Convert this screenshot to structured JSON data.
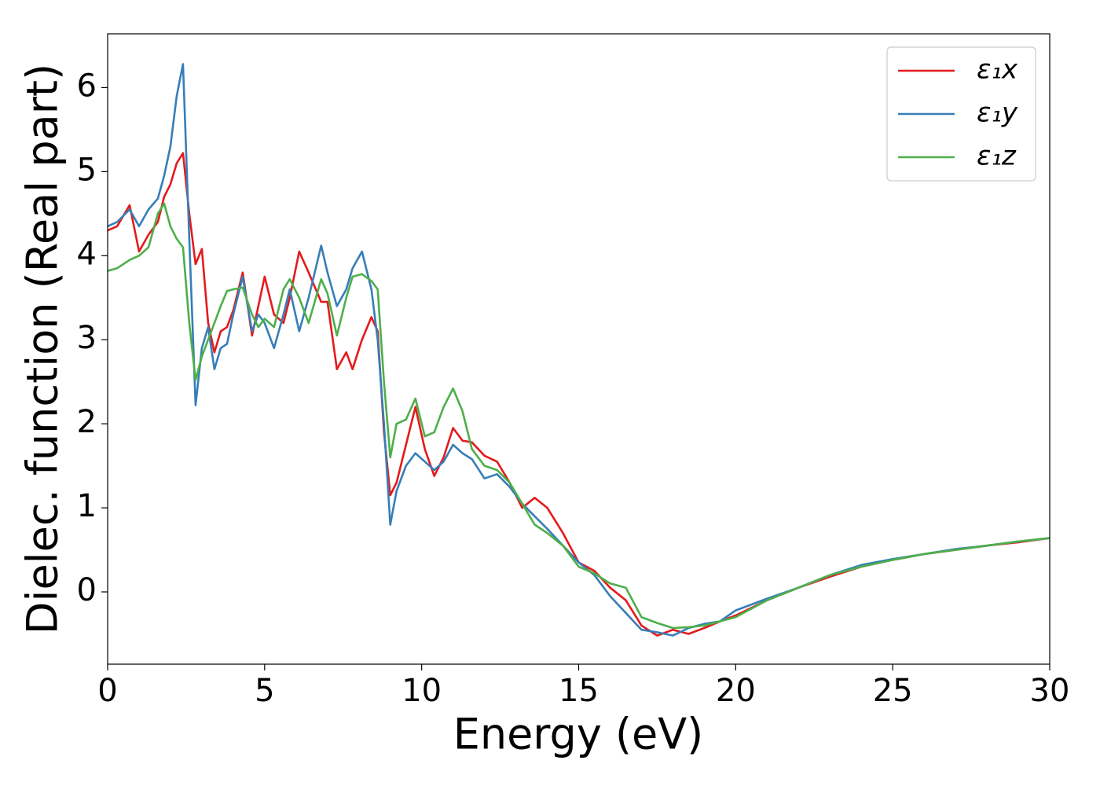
{
  "chart_data": {
    "type": "line",
    "xlabel": "Energy (eV)",
    "ylabel": "Dielec. function (Real part)",
    "x": [
      0,
      0.3,
      0.7,
      1.0,
      1.3,
      1.6,
      1.8,
      2.0,
      2.2,
      2.4,
      2.6,
      2.8,
      3.0,
      3.2,
      3.4,
      3.6,
      3.8,
      4.0,
      4.3,
      4.6,
      4.8,
      5.0,
      5.3,
      5.6,
      5.8,
      6.1,
      6.4,
      6.8,
      7.0,
      7.3,
      7.6,
      7.8,
      8.1,
      8.4,
      8.6,
      8.8,
      9.0,
      9.2,
      9.5,
      9.8,
      10.1,
      10.4,
      10.7,
      11.0,
      11.3,
      11.6,
      12.0,
      12.4,
      12.8,
      13.2,
      13.6,
      14.0,
      14.5,
      15.0,
      15.5,
      16.0,
      16.5,
      17.0,
      17.5,
      18.0,
      18.5,
      19.0,
      19.5,
      20.0,
      21,
      22,
      23,
      24,
      25,
      26,
      27,
      28,
      29,
      30
    ],
    "series": [
      {
        "name": "ε₁x",
        "color": "#e41a1c",
        "values": [
          4.3,
          4.35,
          4.6,
          4.05,
          4.25,
          4.4,
          4.7,
          4.85,
          5.1,
          5.22,
          4.5,
          3.9,
          4.08,
          3.2,
          2.85,
          3.1,
          3.15,
          3.35,
          3.8,
          3.05,
          3.4,
          3.75,
          3.3,
          3.2,
          3.5,
          4.05,
          3.8,
          3.45,
          3.45,
          2.65,
          2.85,
          2.65,
          3.0,
          3.27,
          3.1,
          1.9,
          1.15,
          1.3,
          1.75,
          2.2,
          1.7,
          1.38,
          1.6,
          1.95,
          1.8,
          1.78,
          1.62,
          1.55,
          1.3,
          1.0,
          1.12,
          1.0,
          0.7,
          0.35,
          0.25,
          0.05,
          -0.1,
          -0.4,
          -0.52,
          -0.45,
          -0.5,
          -0.43,
          -0.35,
          -0.28,
          -0.1,
          0.05,
          0.18,
          0.3,
          0.38,
          0.45,
          0.5,
          0.55,
          0.59,
          0.64
        ]
      },
      {
        "name": "ε₁y",
        "color": "#377eb8",
        "values": [
          4.35,
          4.4,
          4.55,
          4.35,
          4.55,
          4.68,
          4.95,
          5.3,
          5.9,
          6.28,
          4.2,
          2.22,
          2.9,
          3.15,
          2.65,
          2.9,
          2.95,
          3.3,
          3.75,
          3.1,
          3.3,
          3.2,
          2.9,
          3.3,
          3.6,
          3.1,
          3.5,
          4.12,
          3.8,
          3.4,
          3.6,
          3.85,
          4.05,
          3.6,
          3.0,
          2.0,
          0.8,
          1.2,
          1.5,
          1.65,
          1.55,
          1.45,
          1.55,
          1.75,
          1.65,
          1.58,
          1.35,
          1.4,
          1.25,
          1.05,
          0.9,
          0.75,
          0.55,
          0.35,
          0.2,
          -0.05,
          -0.25,
          -0.45,
          -0.48,
          -0.52,
          -0.43,
          -0.38,
          -0.35,
          -0.22,
          -0.08,
          0.05,
          0.2,
          0.32,
          0.39,
          0.45,
          0.51,
          0.55,
          0.6,
          0.64
        ]
      },
      {
        "name": "ε₁z",
        "color": "#4daf4a",
        "values": [
          3.82,
          3.85,
          3.95,
          4.0,
          4.1,
          4.5,
          4.62,
          4.35,
          4.2,
          4.1,
          3.2,
          2.52,
          2.8,
          3.0,
          3.2,
          3.4,
          3.58,
          3.6,
          3.62,
          3.3,
          3.15,
          3.25,
          3.15,
          3.6,
          3.72,
          3.5,
          3.2,
          3.72,
          3.55,
          3.05,
          3.5,
          3.75,
          3.78,
          3.7,
          3.6,
          2.5,
          1.6,
          2.0,
          2.05,
          2.3,
          1.85,
          1.9,
          2.2,
          2.42,
          2.15,
          1.7,
          1.5,
          1.45,
          1.3,
          1.05,
          0.8,
          0.7,
          0.55,
          0.3,
          0.22,
          0.1,
          0.05,
          -0.3,
          -0.37,
          -0.43,
          -0.42,
          -0.4,
          -0.35,
          -0.3,
          -0.1,
          0.05,
          0.2,
          0.3,
          0.38,
          0.45,
          0.5,
          0.55,
          0.6,
          0.64
        ]
      }
    ],
    "xlim": [
      0,
      30
    ],
    "xticks": [
      0,
      5,
      10,
      15,
      20,
      25,
      30
    ],
    "ylim": [
      -0.86,
      6.64
    ],
    "yticks": [
      0,
      1,
      2,
      3,
      4,
      5,
      6
    ],
    "legend": "upper right"
  }
}
